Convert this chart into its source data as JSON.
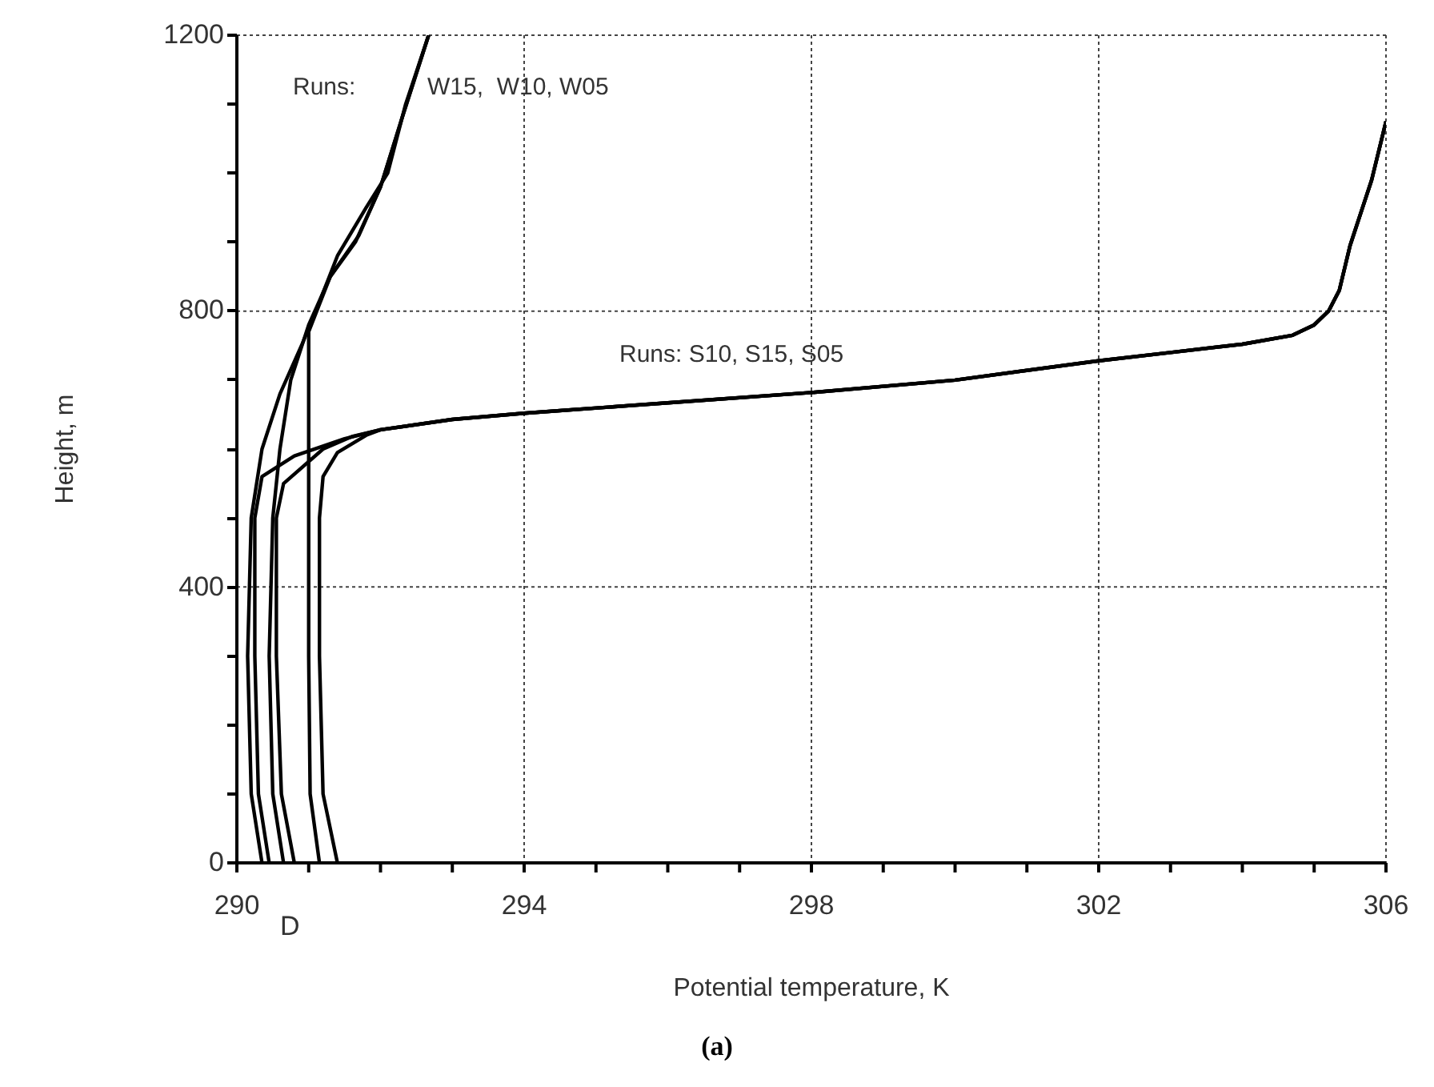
{
  "chart_data": {
    "type": "line",
    "xlabel": "Potential temperature,  K",
    "ylabel": "Height, m",
    "xlim": [
      290,
      306
    ],
    "xticks": [
      290,
      {
        "value": 291,
        "label": null
      },
      {
        "value": 292,
        "label": null
      },
      {
        "value": 293,
        "label": null
      },
      294,
      {
        "value": 295,
        "label": null
      },
      {
        "value": 296,
        "label": null
      },
      {
        "value": 297,
        "label": null
      },
      298,
      {
        "value": 299,
        "label": null
      },
      {
        "value": 300,
        "label": null
      },
      {
        "value": 301,
        "label": null
      },
      302,
      {
        "value": 303,
        "label": null
      },
      {
        "value": 304,
        "label": null
      },
      {
        "value": 305,
        "label": null
      },
      306
    ],
    "ylim": [
      0,
      1200
    ],
    "yticks": [
      0,
      {
        "value": 100,
        "label": null
      },
      {
        "value": 200,
        "label": null
      },
      {
        "value": 300,
        "label": null
      },
      400,
      {
        "value": 500,
        "label": null
      },
      {
        "value": 600,
        "label": null
      },
      {
        "value": 700,
        "label": null
      },
      800,
      {
        "value": 900,
        "label": null
      },
      {
        "value": 1000,
        "label": null
      },
      {
        "value": 1100,
        "label": null
      },
      1200
    ],
    "grid": true,
    "marker": "none",
    "line_style": "solid",
    "series": [
      {
        "color": "#000000",
        "x": [
          290.45,
          290.3,
          290.25,
          290.25,
          290.35,
          290.8,
          291.5,
          292,
          293,
          294,
          296,
          298,
          300,
          302,
          303,
          304,
          304.7,
          305,
          305.2,
          305.35,
          305.5,
          305.8,
          306
        ],
        "values": [
          0,
          100,
          300,
          500,
          560,
          590,
          615,
          628,
          643,
          652,
          667,
          682,
          700,
          728,
          740,
          752,
          765,
          780,
          800,
          830,
          895,
          990,
          1075
        ]
      },
      {
        "color": "#000000",
        "x": [
          290.8,
          290.62,
          290.55,
          290.55,
          290.65,
          291.2,
          291.6,
          292,
          293,
          294,
          296,
          298,
          300,
          302,
          303,
          304,
          304.7,
          305,
          305.2,
          305.35,
          305.5,
          305.8,
          306
        ],
        "values": [
          0,
          100,
          300,
          500,
          550,
          600,
          618,
          628,
          643,
          652,
          667,
          682,
          700,
          728,
          740,
          752,
          765,
          780,
          800,
          830,
          895,
          990,
          1075
        ]
      },
      {
        "color": "#000000",
        "x": [
          291.4,
          291.2,
          291.15,
          291.15,
          291.2,
          291.4,
          291.8,
          292,
          293,
          294,
          296,
          298,
          300,
          302,
          303,
          304,
          304.7,
          305,
          305.2,
          305.35,
          305.5,
          305.8,
          306
        ],
        "values": [
          0,
          100,
          300,
          500,
          560,
          595,
          620,
          628,
          643,
          652,
          667,
          682,
          700,
          728,
          740,
          752,
          765,
          780,
          800,
          830,
          895,
          990,
          1075
        ]
      },
      {
        "color": "#000000",
        "x": [
          290.35,
          290.2,
          290.15,
          290.2,
          290.35,
          290.6,
          290.9,
          291.1,
          291.4,
          291.8,
          292.1,
          292.35,
          292.67
        ],
        "values": [
          0,
          100,
          300,
          500,
          600,
          680,
          750,
          800,
          880,
          950,
          1000,
          1100,
          1200
        ]
      },
      {
        "color": "#000000",
        "x": [
          290.65,
          290.5,
          290.45,
          290.5,
          290.6,
          290.75,
          291,
          291.3,
          291.65,
          292,
          292.3,
          292.67
        ],
        "values": [
          0,
          100,
          300,
          500,
          600,
          700,
          780,
          850,
          900,
          980,
          1080,
          1200
        ]
      },
      {
        "color": "#000000",
        "x": [
          291.15,
          291.02,
          291,
          291,
          291,
          291,
          291.3,
          291.7,
          292,
          292.3,
          292.67
        ],
        "values": [
          0,
          100,
          300,
          500,
          700,
          770,
          850,
          910,
          980,
          1080,
          1200
        ]
      }
    ],
    "annotations": [
      "Runs:  W15,  W10, W05",
      "Runs: S10, S15, S05",
      "D",
      "(a)"
    ]
  }
}
